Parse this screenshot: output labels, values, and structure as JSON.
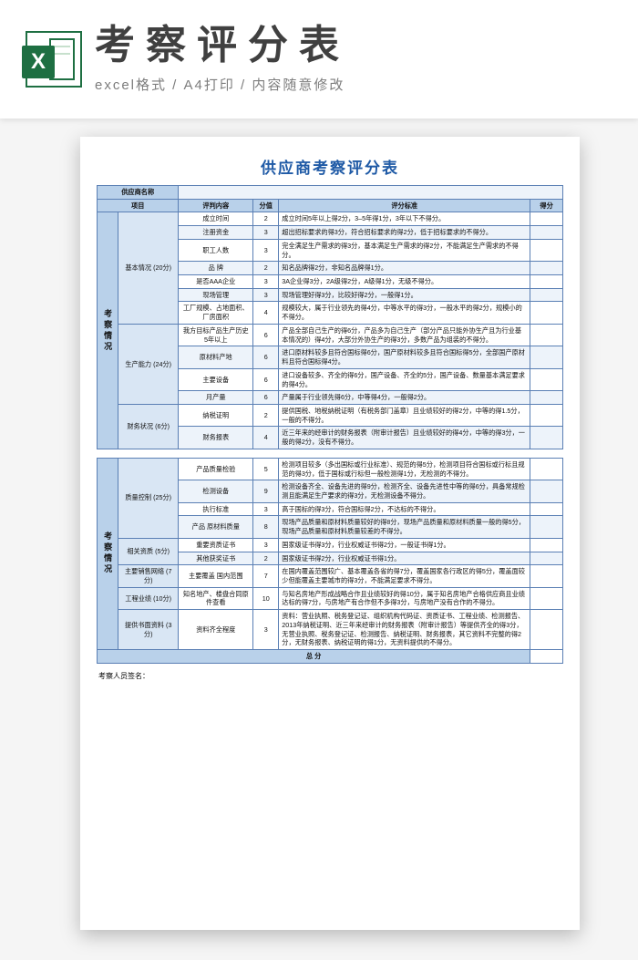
{
  "banner": {
    "title": "考察评分表",
    "subtitle": "excel格式 / A4打印 / 内容随意修改",
    "logo_letter": "X"
  },
  "colors": {
    "header_bg": "#b9d1ea",
    "sub_bg": "#d9e6f4",
    "border": "#5a7fb4",
    "title_color": "#1f5aa6"
  },
  "doc": {
    "title": "供应商考察评分表",
    "supplier_label": "供应商名称",
    "headers": {
      "project": "项目",
      "item": "评判内容",
      "score": "分值",
      "criteria": "评分标准",
      "got": "得分"
    },
    "section1": {
      "label": "考察情况",
      "groups": [
        {
          "name": "基本情况 (20分)",
          "rows": [
            {
              "item": "成立时间",
              "score": "2",
              "criteria": "成立时间5年以上得2分，3–5年得1分，3年以下不得分。"
            },
            {
              "item": "注册资金",
              "score": "3",
              "criteria": "超出招标要求的得3分，符合招标要求的得2分，低于招标要求的不得分。"
            },
            {
              "item": "职工人数",
              "score": "3",
              "criteria": "完全满足生产需求的得3分，基本满足生产需求的得2分，不能满足生产需求的不得分。"
            },
            {
              "item": "品 牌",
              "score": "2",
              "criteria": "知名品牌得2分，非知名品牌得1分。"
            },
            {
              "item": "是否AAA企业",
              "score": "3",
              "criteria": "3A企业得3分，2A级得2分，A级得1分，无级不得分。"
            },
            {
              "item": "现场管理",
              "score": "3",
              "criteria": "现场管理好得3分，比较好得2分，一般得1分。"
            },
            {
              "item": "工厂规模、占地面积、厂房面积",
              "score": "4",
              "criteria": "规模较大，属于行业领先的得4分，中等水平的得3分，一般水平的得2分，规模小的不得分。"
            }
          ]
        },
        {
          "name": "生产能力 (24分)",
          "rows": [
            {
              "item": "我方目标产品生产历史5年以上",
              "score": "6",
              "criteria": "产品全部自己生产的得6分，产品多为自己生产（部分产品只能外协生产且为行业基本情况的）得4分，大部分外协生产的得3分，多数产品为组装的不得分。"
            },
            {
              "item": "原材料产地",
              "score": "6",
              "criteria": "进口原材料较多且符合国标得6分，国产原材料较多且符合国标得5分，全部国产原材料且符合国标得4分。"
            },
            {
              "item": "主要设备",
              "score": "6",
              "criteria": "进口设备较多、齐全的得6分，国产设备、齐全的5分，国产设备、数量基本满足要求的得4分。"
            },
            {
              "item": "月产量",
              "score": "6",
              "criteria": "产量属于行业领先得6分，中等得4分，一般得2分。"
            }
          ]
        },
        {
          "name": "财务状况 (6分)",
          "rows": [
            {
              "item": "纳税证明",
              "score": "2",
              "criteria": "提供国税、地税纳税证明（有税务部门盖章）且业绩较好的得2分，中等的得1.5分，一般的不得分。"
            },
            {
              "item": "财务报表",
              "score": "4",
              "criteria": "近三年来的经审计的财务报表（附审计报告）且业绩较好的得4分，中等的得3分，一般的得2分，没有不得分。"
            }
          ]
        }
      ]
    },
    "section2": {
      "label": "考察情况",
      "groups": [
        {
          "name": "质量控制 (25分)",
          "rows": [
            {
              "item": "产品质量检验",
              "score": "5",
              "criteria": "检测项目较多（多出国标或行业标准）、规范的得5分，检测项目符合国标或行标且规范的得3分，低于国标或行标但一般检测得1分，无检测的不得分。"
            },
            {
              "item": "检测设备",
              "score": "9",
              "criteria": "检测设备齐全、设备先进的得9分，检测齐全、设备先进性中等的得6分，具备常规检测且能满足生产要求的得3分，无检测设备不得分。"
            },
            {
              "item": "执行标准",
              "score": "3",
              "criteria": "高于国标的得3分，符合国标得2分，不达标的不得分。"
            },
            {
              "item": "产品 原材料质量",
              "score": "8",
              "criteria": "现场产品质量和原材料质量较好的得8分，现场产品质量和原材料质量一般的得5分，现场产品质量和原材料质量较差的不得分。"
            }
          ]
        },
        {
          "name": "相关资质 (5分)",
          "rows": [
            {
              "item": "重要资质证书",
              "score": "3",
              "criteria": "国家级证书得3分，行业权威证书得2分，一般证书得1分。"
            },
            {
              "item": "其他获奖证书",
              "score": "2",
              "criteria": "国家级证书得2分，行业权威证书得1分。"
            }
          ]
        },
        {
          "name": "主要销售网络 (7分)",
          "rows": [
            {
              "item": "主要覆盖 国内范围",
              "score": "7",
              "criteria": "在国内覆盖范围较广、基本覆盖各省的得7分，覆盖国家各行政区的得5分，覆盖面较少但能覆盖主要城市的得3分，不能满足要求不得分。"
            }
          ]
        },
        {
          "name": "工程业绩 (10分)",
          "rows": [
            {
              "item": "知名地产、楼盘合同原件查看",
              "score": "10",
              "criteria": "与知名房地产形成战略合作且业绩较好的得10分，属于知名房地产合格供应商且业绩达标的得7分，与房地产有合作但不多得3分，与房地产没有合作的不得分。"
            }
          ]
        },
        {
          "name": "提供书面资料 (3分)",
          "rows": [
            {
              "item": "资料齐全程度",
              "score": "3",
              "criteria": "资料：营业执照、税务登记证、组织机构代码证、资质证书、工程业绩、检测报告、2013年纳税证明、近三年来经审计的财务报表（附审计报告）等提供齐全的得3分，无营业执照、税务登记证、检测报告、纳税证明、财务报表，其它资料不完整的得2分，无财务报表、纳税证明的得1分，无资料提供的不得分。"
            }
          ]
        }
      ]
    },
    "total_label": "总 分",
    "sign_label": "考察人员签名："
  }
}
